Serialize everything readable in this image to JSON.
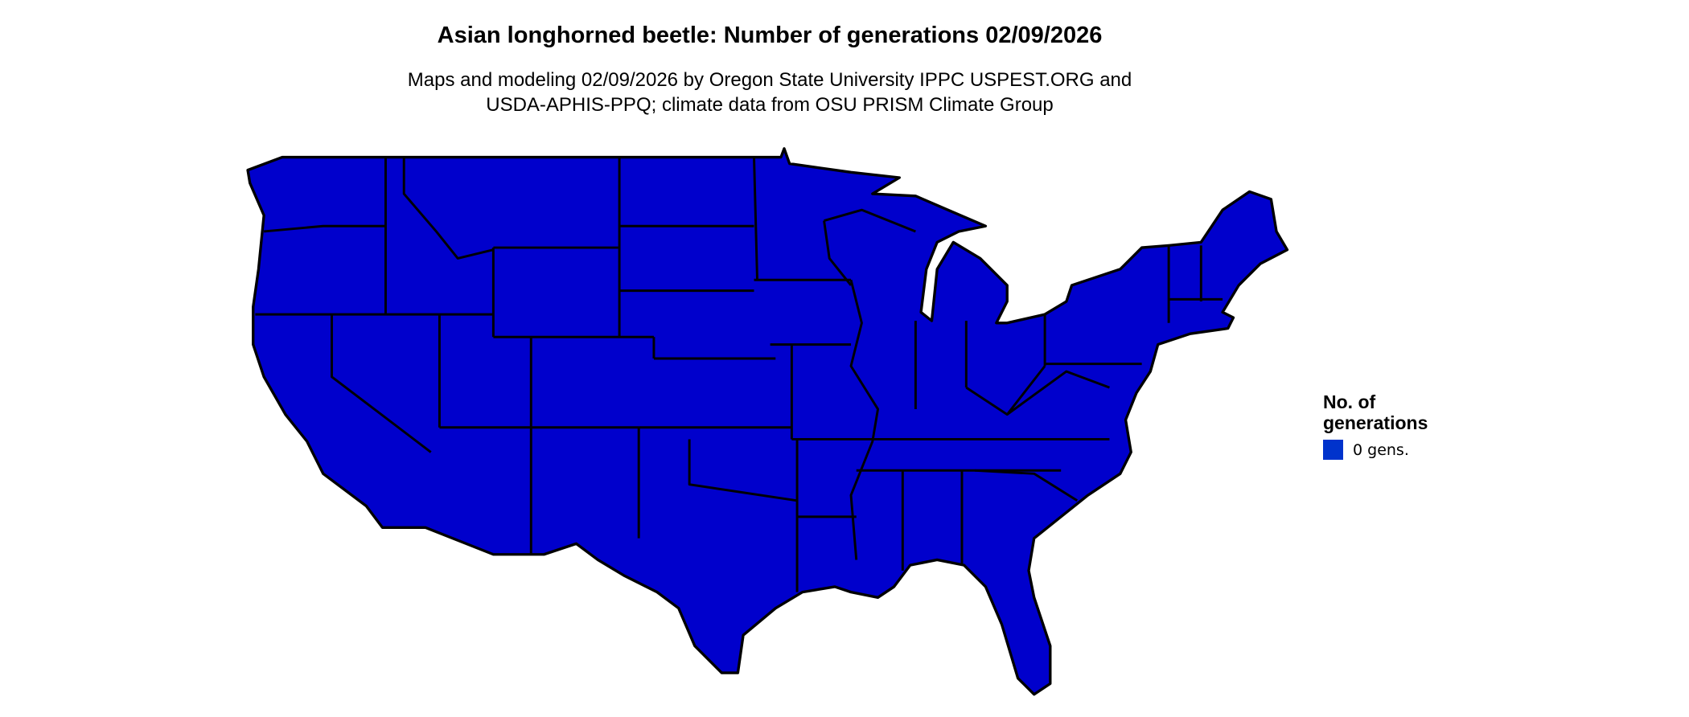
{
  "title": "Asian longhorned beetle: Number of generations 02/09/2026",
  "subtitle_line1": "Maps and modeling 02/09/2026 by Oregon State University IPPC USPEST.ORG and",
  "subtitle_line2": "USDA-APHIS-PPQ; climate data from OSU PRISM Climate Group",
  "map": {
    "region": "Contiguous United States",
    "fill_color": "#0000CC",
    "border_color": "#000000"
  },
  "legend": {
    "title_line1": "No. of",
    "title_line2": "generations",
    "items": [
      {
        "label": "0 gens.",
        "color": "#0033CC"
      }
    ]
  }
}
